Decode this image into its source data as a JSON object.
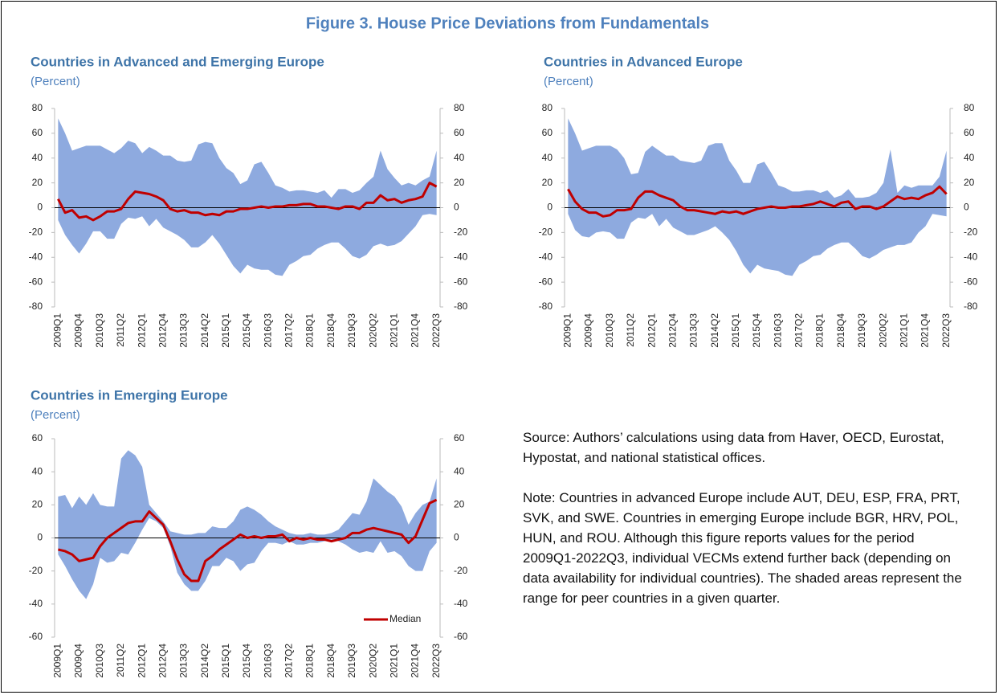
{
  "title": "Figure 3. House Price Deviations from Fundamentals",
  "chart_data": [
    {
      "type": "band_line",
      "title": "Countries in Advanced and Emerging Europe",
      "subtitle": "(Percent)",
      "categories": [
        "2009Q1",
        null,
        null,
        "2009Q4",
        null,
        null,
        "2010Q3",
        null,
        null,
        "2011Q2",
        null,
        null,
        "2012Q1",
        null,
        null,
        "2012Q4",
        null,
        null,
        "2013Q3",
        null,
        null,
        "2014Q2",
        null,
        null,
        "2015Q1",
        null,
        null,
        "2015Q4",
        null,
        null,
        "2016Q3",
        null,
        null,
        "2017Q2",
        null,
        null,
        "2018Q1",
        null,
        null,
        "2018Q4",
        null,
        null,
        "2019Q3",
        null,
        null,
        "2020Q2",
        null,
        null,
        "2021Q1",
        null,
        null,
        "2021Q4",
        null,
        null,
        "2022Q3"
      ],
      "range": {
        "color": "#8eaadf",
        "high": [
          72,
          60,
          46,
          48,
          50,
          50,
          50,
          47,
          44,
          48,
          54,
          52,
          44,
          49,
          46,
          42,
          42,
          38,
          37,
          38,
          51,
          53,
          52,
          40,
          32,
          28,
          19,
          22,
          35,
          37,
          28,
          18,
          16,
          13,
          14,
          14,
          13,
          12,
          14,
          8,
          15,
          15,
          12,
          14,
          20,
          25,
          46,
          31,
          24,
          18,
          20,
          18,
          22,
          25,
          46
        ],
        "low": [
          -10,
          -22,
          -30,
          -37,
          -29,
          -19,
          -19,
          -25,
          -25,
          -13,
          -8,
          -9,
          -7,
          -15,
          -9,
          -16,
          -19,
          -22,
          -26,
          -32,
          -32,
          -28,
          -22,
          -29,
          -38,
          -47,
          -53,
          -46,
          -49,
          -50,
          -50,
          -54,
          -55,
          -46,
          -43,
          -39,
          -38,
          -33,
          -30,
          -28,
          -28,
          -33,
          -39,
          -41,
          -38,
          -31,
          -29,
          -31,
          -30,
          -27,
          -21,
          -15,
          -6,
          -5,
          -6
        ]
      },
      "series": [
        {
          "color": "#c00000",
          "values": [
            7,
            -4,
            -2,
            -8,
            -7,
            -10,
            -7,
            -3,
            -3,
            -1,
            7,
            13,
            12,
            11,
            9,
            6,
            -1,
            -3,
            -2,
            -4,
            -4,
            -6,
            -5,
            -6,
            -3,
            -3,
            -1,
            -1,
            0,
            1,
            0,
            1,
            1,
            2,
            2,
            3,
            3,
            1,
            1,
            0,
            -1,
            1,
            1,
            -1,
            4,
            4,
            10,
            6,
            7,
            4,
            6,
            7,
            9,
            20,
            17
          ]
        }
      ],
      "ylim": [
        -80,
        80
      ],
      "yticks": [
        -80,
        -60,
        -40,
        -20,
        0,
        20,
        40,
        60,
        80
      ],
      "y2lim": [
        -80,
        80
      ],
      "y2ticks": [
        -80,
        -60,
        -40,
        -20,
        0,
        20,
        40,
        60,
        80
      ]
    },
    {
      "type": "band_line",
      "title": "Countries in Advanced Europe",
      "subtitle": "(Percent)",
      "categories": [
        "2009Q1",
        null,
        null,
        "2009Q4",
        null,
        null,
        "2010Q3",
        null,
        null,
        "2011Q2",
        null,
        null,
        "2012Q1",
        null,
        null,
        "2012Q4",
        null,
        null,
        "2013Q3",
        null,
        null,
        "2014Q2",
        null,
        null,
        "2015Q1",
        null,
        null,
        "2015Q4",
        null,
        null,
        "2016Q3",
        null,
        null,
        "2017Q2",
        null,
        null,
        "2018Q1",
        null,
        null,
        "2018Q4",
        null,
        null,
        "2019Q3",
        null,
        null,
        "2020Q2",
        null,
        null,
        "2021Q1",
        null,
        null,
        "2021Q4",
        null,
        null,
        "2022Q3"
      ],
      "range": {
        "color": "#8eaadf",
        "high": [
          72,
          60,
          46,
          48,
          50,
          50,
          50,
          47,
          40,
          27,
          28,
          45,
          50,
          46,
          42,
          42,
          38,
          37,
          36,
          38,
          50,
          52,
          52,
          38,
          30,
          20,
          20,
          35,
          37,
          28,
          18,
          16,
          13,
          13,
          14,
          14,
          12,
          14,
          8,
          10,
          15,
          8,
          8,
          9,
          12,
          20,
          47,
          12,
          18,
          16,
          18,
          18,
          18,
          25,
          46
        ],
        "low": [
          -5,
          -18,
          -23,
          -24,
          -20,
          -19,
          -20,
          -25,
          -25,
          -12,
          -8,
          -9,
          -5,
          -15,
          -9,
          -16,
          -19,
          -22,
          -22,
          -20,
          -18,
          -15,
          -20,
          -26,
          -35,
          -46,
          -53,
          -46,
          -49,
          -50,
          -51,
          -54,
          -55,
          -46,
          -43,
          -39,
          -38,
          -33,
          -30,
          -28,
          -28,
          -33,
          -39,
          -41,
          -38,
          -34,
          -32,
          -30,
          -30,
          -28,
          -20,
          -15,
          -5,
          -6,
          -7
        ]
      },
      "series": [
        {
          "color": "#c00000",
          "values": [
            15,
            5,
            -1,
            -4,
            -4,
            -7,
            -6,
            -2,
            -2,
            -1,
            8,
            13,
            13,
            10,
            8,
            6,
            1,
            -2,
            -2,
            -3,
            -4,
            -5,
            -3,
            -4,
            -3,
            -5,
            -3,
            -1,
            0,
            1,
            0,
            0,
            1,
            1,
            2,
            3,
            5,
            3,
            1,
            4,
            5,
            -1,
            1,
            1,
            -1,
            1,
            5,
            9,
            7,
            8,
            7,
            10,
            12,
            17,
            11
          ]
        }
      ],
      "ylim": [
        -80,
        80
      ],
      "yticks": [
        -80,
        -60,
        -40,
        -20,
        0,
        20,
        40,
        60,
        80
      ],
      "y2lim": [
        -80,
        80
      ],
      "y2ticks": [
        -80,
        -60,
        -40,
        -20,
        0,
        20,
        40,
        60,
        80
      ]
    },
    {
      "type": "band_line",
      "title": "Countries in Emerging Europe",
      "subtitle": "(Percent)",
      "categories": [
        "2009Q1",
        null,
        null,
        "2009Q4",
        null,
        null,
        "2010Q3",
        null,
        null,
        "2011Q2",
        null,
        null,
        "2012Q1",
        null,
        null,
        "2012Q4",
        null,
        null,
        "2013Q3",
        null,
        null,
        "2014Q2",
        null,
        null,
        "2015Q1",
        null,
        null,
        "2015Q4",
        null,
        null,
        "2016Q3",
        null,
        null,
        "2017Q2",
        null,
        null,
        "2018Q1",
        null,
        null,
        "2018Q4",
        null,
        null,
        "2019Q3",
        null,
        null,
        "2020Q2",
        null,
        null,
        "2021Q1",
        null,
        null,
        "2021Q4",
        null,
        null,
        "2022Q3"
      ],
      "range": {
        "color": "#8eaadf",
        "high": [
          25,
          26,
          18,
          25,
          20,
          27,
          20,
          19,
          19,
          48,
          53,
          50,
          43,
          20,
          15,
          10,
          4,
          3,
          2,
          2,
          3,
          3,
          7,
          6,
          6,
          10,
          17,
          19,
          17,
          14,
          10,
          7,
          5,
          3,
          2,
          2,
          3,
          2,
          2,
          3,
          5,
          10,
          15,
          14,
          22,
          36,
          32,
          28,
          25,
          19,
          8,
          15,
          20,
          22,
          36
        ],
        "low": [
          -10,
          -17,
          -25,
          -32,
          -37,
          -28,
          -12,
          -15,
          -14,
          -9,
          -10,
          -3,
          5,
          12,
          10,
          6,
          -5,
          -21,
          -28,
          -32,
          -32,
          -26,
          -17,
          -17,
          -12,
          -14,
          -20,
          -16,
          -15,
          -8,
          -3,
          -3,
          -4,
          -2,
          -4,
          -4,
          -3,
          -3,
          -2,
          -1,
          -2,
          -4,
          -7,
          -9,
          -8,
          -9,
          -2,
          -9,
          -8,
          -11,
          -17,
          -20,
          -20,
          -8,
          -3
        ]
      },
      "series": [
        {
          "name": "Median",
          "color": "#c00000",
          "values": [
            -7,
            -8,
            -10,
            -14,
            -13,
            -12,
            -5,
            0,
            3,
            6,
            9,
            10,
            10,
            16,
            12,
            8,
            -2,
            -13,
            -22,
            -26,
            -26,
            -14,
            -11,
            -7,
            -4,
            -1,
            2,
            0,
            1,
            0,
            1,
            1,
            2,
            -2,
            0,
            -1,
            0,
            -1,
            -1,
            -2,
            -1,
            0,
            3,
            3,
            5,
            6,
            5,
            4,
            3,
            2,
            -3,
            1,
            11,
            21,
            23
          ]
        }
      ],
      "legend": "lower right",
      "ylim": [
        -60,
        60
      ],
      "yticks": [
        -60,
        -40,
        -20,
        0,
        20,
        40,
        60
      ],
      "y2lim": [
        -60,
        60
      ],
      "y2ticks": [
        -60,
        -40,
        -20,
        0,
        20,
        40,
        60
      ]
    }
  ],
  "source": "Source: Authors’ calculations using data from Haver, OECD, Eurostat, Hypostat, and national statistical offices.",
  "note": "Note: Countries in advanced Europe include AUT, DEU, ESP, FRA, PRT, SVK, and SWE. Countries in emerging Europe include BGR, HRV, POL, HUN, and ROU. Although this figure reports values for the period 2009Q1-2022Q3, individual VECMs extend further back (depending on data availability for individual countries). The shaded areas represent the range for peer countries in a given quarter."
}
